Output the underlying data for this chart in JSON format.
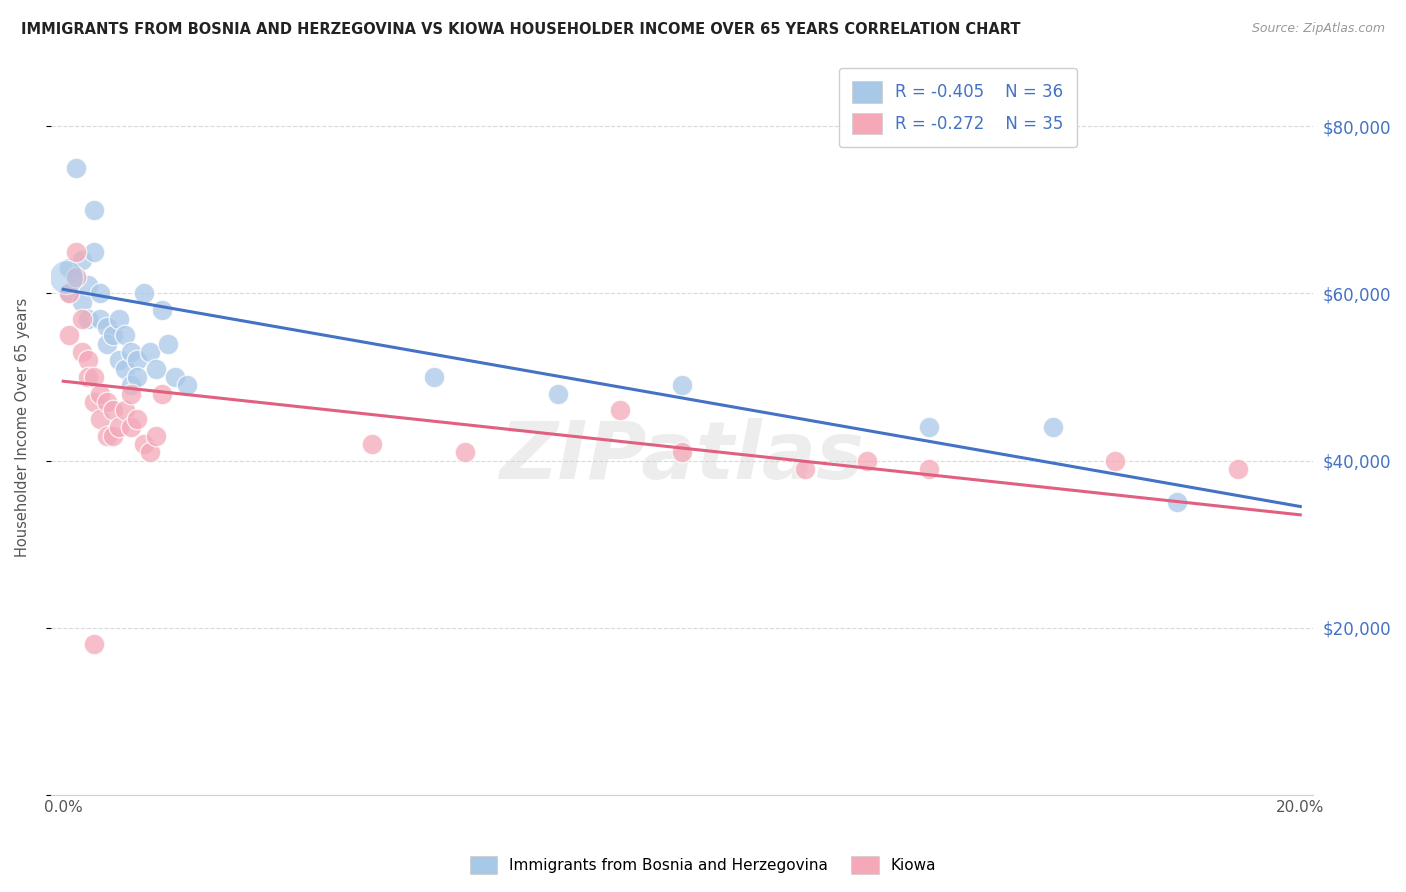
{
  "title": "IMMIGRANTS FROM BOSNIA AND HERZEGOVINA VS KIOWA HOUSEHOLDER INCOME OVER 65 YEARS CORRELATION CHART",
  "source": "Source: ZipAtlas.com",
  "ylabel": "Householder Income Over 65 years",
  "xlim": [
    -0.002,
    0.202
  ],
  "ylim": [
    0,
    88000
  ],
  "yticks": [
    0,
    20000,
    40000,
    60000,
    80000
  ],
  "right_tick_labels": [
    "",
    "$20,000",
    "$40,000",
    "$60,000",
    "$80,000"
  ],
  "xtick_positions": [
    0.0,
    0.05,
    0.1,
    0.15,
    0.2
  ],
  "xtick_labels": [
    "0.0%",
    "",
    "",
    "",
    "20.0%"
  ],
  "legend_r1": "-0.405",
  "legend_n1": "36",
  "legend_r2": "-0.272",
  "legend_n2": "35",
  "blue_fill": "#a8c8e8",
  "blue_edge": "#7ab0d4",
  "blue_line": "#4472c4",
  "pink_fill": "#f4a8b8",
  "pink_edge": "#e87898",
  "pink_line": "#e06080",
  "watermark": "ZIPatlas",
  "bg": "#ffffff",
  "grid_color": "#d0d0d0",
  "blue_scatter_x": [
    0.001,
    0.001,
    0.002,
    0.002,
    0.003,
    0.003,
    0.004,
    0.004,
    0.005,
    0.005,
    0.006,
    0.006,
    0.007,
    0.007,
    0.008,
    0.009,
    0.009,
    0.01,
    0.01,
    0.011,
    0.011,
    0.012,
    0.012,
    0.013,
    0.014,
    0.015,
    0.016,
    0.017,
    0.018,
    0.02,
    0.06,
    0.08,
    0.1,
    0.14,
    0.16,
    0.18
  ],
  "blue_scatter_y": [
    63000,
    60000,
    62000,
    75000,
    64000,
    59000,
    61000,
    57000,
    70000,
    65000,
    60000,
    57000,
    56000,
    54000,
    55000,
    57000,
    52000,
    55000,
    51000,
    53000,
    49000,
    52000,
    50000,
    60000,
    53000,
    51000,
    58000,
    54000,
    50000,
    49000,
    50000,
    48000,
    49000,
    44000,
    44000,
    35000
  ],
  "pink_scatter_x": [
    0.001,
    0.001,
    0.002,
    0.002,
    0.003,
    0.003,
    0.004,
    0.004,
    0.005,
    0.005,
    0.006,
    0.006,
    0.007,
    0.007,
    0.008,
    0.008,
    0.009,
    0.01,
    0.011,
    0.011,
    0.012,
    0.013,
    0.014,
    0.015,
    0.016,
    0.05,
    0.065,
    0.09,
    0.1,
    0.12,
    0.13,
    0.14,
    0.17,
    0.19,
    0.005
  ],
  "pink_scatter_y": [
    60000,
    55000,
    65000,
    62000,
    57000,
    53000,
    52000,
    50000,
    50000,
    47000,
    48000,
    45000,
    47000,
    43000,
    46000,
    43000,
    44000,
    46000,
    48000,
    44000,
    45000,
    42000,
    41000,
    43000,
    48000,
    42000,
    41000,
    46000,
    41000,
    39000,
    40000,
    39000,
    40000,
    39000,
    18000
  ]
}
